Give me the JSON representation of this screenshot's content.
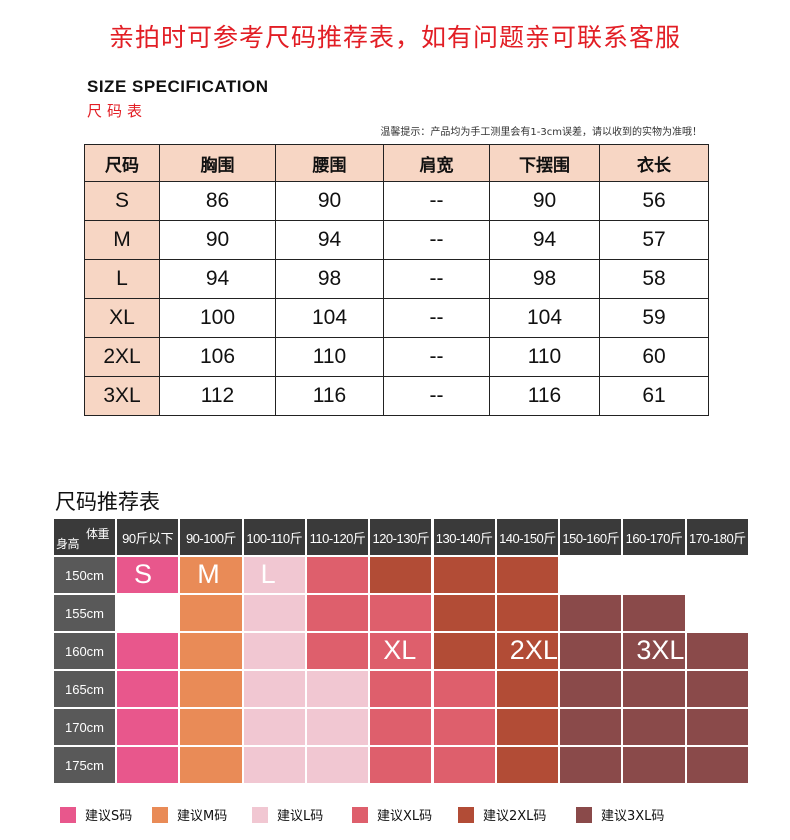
{
  "banner": "亲拍时可参考尺码推荐表，如有问题亲可联系客服",
  "spec": {
    "title": "SIZE  SPECIFICATION",
    "subtitle": "尺码表",
    "note": "温馨提示：产品均为手工测里会有1-3cm误差，请以收到的实物为准哦！",
    "headers": [
      "尺码",
      "胸围",
      "腰围",
      "肩宽",
      "下摆围",
      "衣长"
    ],
    "rows": [
      [
        "S",
        "86",
        "90",
        "--",
        "90",
        "56"
      ],
      [
        "M",
        "90",
        "94",
        "--",
        "94",
        "57"
      ],
      [
        "L",
        "94",
        "98",
        "--",
        "98",
        "58"
      ],
      [
        "XL",
        "100",
        "104",
        "--",
        "104",
        "59"
      ],
      [
        "2XL",
        "106",
        "110",
        "--",
        "110",
        "60"
      ],
      [
        "3XL",
        "112",
        "116",
        "--",
        "116",
        "61"
      ]
    ]
  },
  "recommend": {
    "title": "尺码推荐表",
    "corner_height": "身高",
    "corner_weight": "体重",
    "weights": [
      "90斤以下",
      "90-100斤",
      "100-110斤",
      "110-120斤",
      "120-130斤",
      "130-140斤",
      "140-150斤",
      "150-160斤",
      "160-170斤",
      "170-180斤"
    ],
    "heights": [
      "150cm",
      "155cm",
      "160cm",
      "165cm",
      "170cm",
      "175cm"
    ],
    "grid": [
      [
        "S",
        "M",
        "L",
        "XL",
        "2XL",
        "2XL",
        "2XL",
        null,
        null,
        null
      ],
      [
        null,
        "M",
        "L",
        "XL",
        "XL",
        "2XL",
        "2XL",
        "3XL",
        "3XL",
        null
      ],
      [
        "S",
        "M",
        "L",
        "XL",
        "XL",
        "2XL",
        "2XL",
        "3XL",
        "3XL",
        "3XL"
      ],
      [
        "S",
        "M",
        "L",
        "L",
        "XL",
        "XL",
        "2XL",
        "3XL",
        "3XL",
        "3XL"
      ],
      [
        "S",
        "M",
        "L",
        "L",
        "XL",
        "XL",
        "2XL",
        "3XL",
        "3XL",
        "3XL"
      ],
      [
        "S",
        "M",
        "L",
        "L",
        "XL",
        "XL",
        "2XL",
        "3XL",
        "3XL",
        "3XL"
      ]
    ],
    "labels": [
      {
        "text": "S",
        "row": 0,
        "col": 0
      },
      {
        "text": "M",
        "row": 0,
        "col": 1
      },
      {
        "text": "L",
        "row": 0,
        "col": 2
      },
      {
        "text": "XL",
        "row": 2,
        "col": 4
      },
      {
        "text": "2XL",
        "row": 2,
        "col": 6
      },
      {
        "text": "3XL",
        "row": 2,
        "col": 8
      }
    ],
    "colors": {
      "S": "#e8578c",
      "M": "#e98b57",
      "L": "#f1c7d2",
      "XL": "#de5f6c",
      "2XL": "#b24c36",
      "3XL": "#8a4a4a"
    },
    "legend": [
      {
        "size": "S",
        "label": "建议S码"
      },
      {
        "size": "M",
        "label": "建议M码"
      },
      {
        "size": "L",
        "label": "建议L码"
      },
      {
        "size": "XL",
        "label": "建议XL码"
      },
      {
        "size": "2XL",
        "label": "建议2XL码"
      },
      {
        "size": "3XL",
        "label": "建议3XL码"
      }
    ]
  }
}
